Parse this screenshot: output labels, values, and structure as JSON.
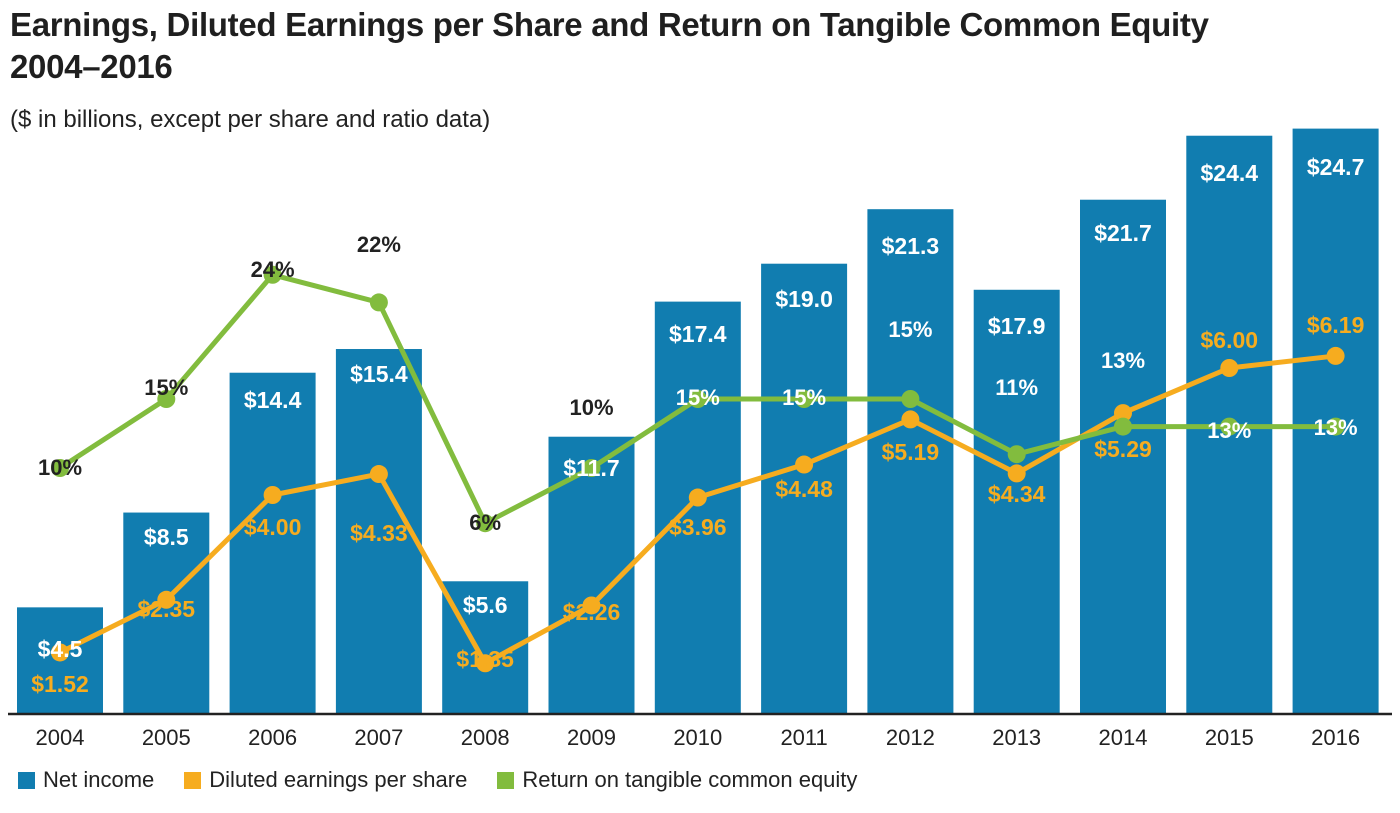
{
  "chart_data": {
    "type": "bar",
    "title": "Earnings, Diluted Earnings per Share and Return on Tangible Common Equity",
    "title_line2": "2004–2016",
    "subtitle": "($ in billions, except per share and ratio data)",
    "categories": [
      "2004",
      "2005",
      "2006",
      "2007",
      "2008",
      "2009",
      "2010",
      "2011",
      "2012",
      "2013",
      "2014",
      "2015",
      "2016"
    ],
    "series": [
      {
        "name": "Net income",
        "type": "bar",
        "color": "#117db0",
        "values": [
          4.5,
          8.5,
          14.4,
          15.4,
          5.6,
          11.7,
          17.4,
          19.0,
          21.3,
          17.9,
          21.7,
          24.4,
          24.7
        ],
        "labels": [
          "$4.5",
          "$8.5",
          "$14.4",
          "$15.4",
          "$5.6",
          "$11.7",
          "$17.4",
          "$19.0",
          "$21.3",
          "$17.9",
          "$21.7",
          "$24.4",
          "$24.7"
        ]
      },
      {
        "name": "Diluted earnings per share",
        "type": "line",
        "color": "#f6ac1f",
        "values": [
          1.52,
          2.35,
          4.0,
          4.33,
          1.35,
          2.26,
          3.96,
          4.48,
          5.19,
          4.34,
          5.29,
          6.0,
          6.19
        ],
        "labels": [
          "$1.52",
          "$2.35",
          "$4.00",
          "$4.33",
          "$1.35",
          "$2.26",
          "$3.96",
          "$4.48",
          "$5.19",
          "$4.34",
          "$5.29",
          "$6.00",
          "$6.19"
        ]
      },
      {
        "name": "Return on tangible common equity",
        "type": "line",
        "color": "#82bc3e",
        "values": [
          10,
          15,
          24,
          22,
          6,
          10,
          15,
          15,
          15,
          11,
          13,
          13,
          13
        ],
        "labels": [
          "10%",
          "15%",
          "24%",
          "22%",
          "6%",
          "10%",
          "15%",
          "15%",
          "15%",
          "11%",
          "13%",
          "13%",
          "13%"
        ]
      }
    ],
    "legend_placement": "bottom",
    "grid": false
  }
}
